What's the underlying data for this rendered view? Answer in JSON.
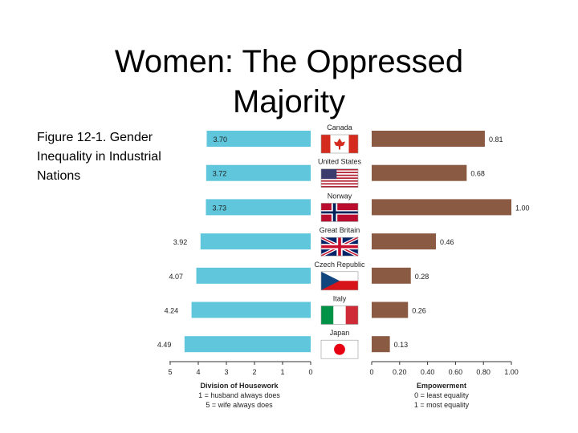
{
  "slide": {
    "title": "Women: The Oppressed Majority",
    "caption": "Figure 12-1. Gender Inequality in Industrial Nations"
  },
  "chart_data": {
    "type": "bar",
    "categories": [
      "Canada",
      "United States",
      "Norway",
      "Great Britain",
      "Czech Republic",
      "Italy",
      "Japan"
    ],
    "flag_icons": [
      "canada-flag-icon",
      "united-states-flag-icon",
      "norway-flag-icon",
      "great-britain-flag-icon",
      "czech-republic-flag-icon",
      "italy-flag-icon",
      "japan-flag-icon"
    ],
    "series": [
      {
        "name": "Division of Housework",
        "values": [
          3.7,
          3.72,
          3.73,
          3.92,
          4.07,
          4.24,
          4.49
        ],
        "labels": [
          "3.70",
          "3.72",
          "3.73",
          "3.92",
          "4.07",
          "4.24",
          "4.49"
        ],
        "color": "#5fc6dc",
        "xlim": [
          0,
          5
        ],
        "ticks": [
          "5",
          "4",
          "3",
          "2",
          "1",
          "0"
        ],
        "xlabel": "Division of Housework",
        "notes": [
          "1 = husband always does",
          "5 = wife always does"
        ]
      },
      {
        "name": "Empowerment",
        "values": [
          0.81,
          0.68,
          1.0,
          0.46,
          0.28,
          0.26,
          0.13
        ],
        "labels": [
          "0.81",
          "0.68",
          "1.00",
          "0.46",
          "0.28",
          "0.26",
          "0.13"
        ],
        "color": "#8a5a42",
        "xlim": [
          0,
          1
        ],
        "ticks": [
          "0",
          "0.20",
          "0.40",
          "0.60",
          "0.80",
          "1.00"
        ],
        "xlabel": "Empowerment",
        "notes": [
          "0 = least equality",
          "1 = most equality"
        ]
      }
    ],
    "grid": false
  }
}
